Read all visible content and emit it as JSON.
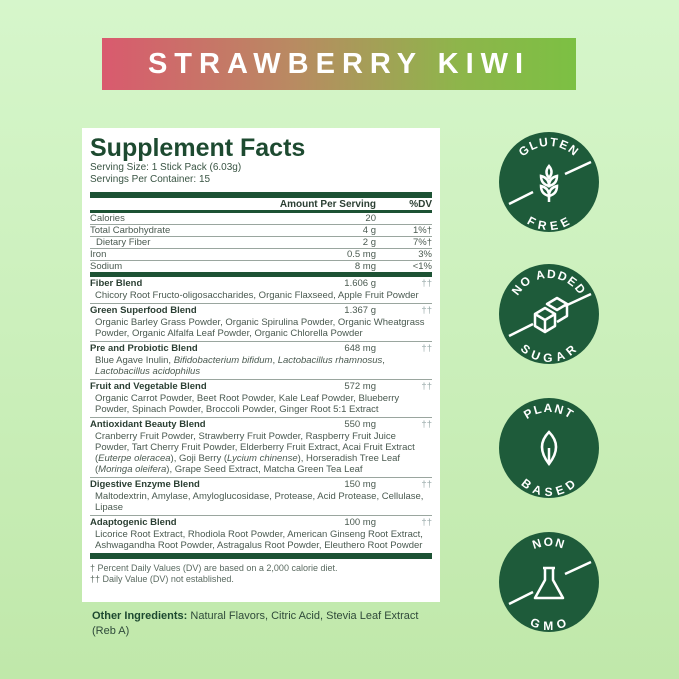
{
  "banner": {
    "title": "STRAWBERRY KIWI",
    "gradient": [
      "#d95a6e",
      "#7cc043"
    ]
  },
  "facts": {
    "title": "Supplement Facts",
    "serving_size": "Serving Size: 1 Stick Pack (6.03g)",
    "servings_per_container": "Servings Per Container: 15",
    "header": {
      "amount": "Amount Per Serving",
      "dv": "%DV"
    },
    "nutrients": [
      {
        "name": "Calories",
        "amount": "20",
        "dv": ""
      },
      {
        "name": "Total Carbohydrate",
        "amount": "4 g",
        "dv": "1%†"
      },
      {
        "name": "Dietary Fiber",
        "amount": "2 g",
        "dv": "7%†"
      },
      {
        "name": "Iron",
        "amount": "0.5 mg",
        "dv": "3%"
      },
      {
        "name": "Sodium",
        "amount": "8 mg",
        "dv": "<1%"
      }
    ],
    "blends": [
      {
        "name": "Fiber Blend",
        "amount": "1.606 g",
        "dv": "††",
        "ingredients": "Chicory Root Fructo-oligosaccharides, Organic Flaxseed, Apple Fruit Powder"
      },
      {
        "name": "Green Superfood Blend",
        "amount": "1.367 g",
        "dv": "††",
        "ingredients": "Organic Barley Grass Powder, Organic Spirulina Powder, Organic Wheatgrass Powder, Organic Alfalfa Leaf Powder, Organic Chlorella Powder"
      },
      {
        "name": "Pre and Probiotic Blend",
        "amount": "648 mg",
        "dv": "††",
        "ingredients": "Blue Agave Inulin, Bifidobacterium bifidum, Lactobacillus rhamnosus, Lactobacillus acidophilus"
      },
      {
        "name": "Fruit and Vegetable Blend",
        "amount": "572 mg",
        "dv": "††",
        "ingredients": "Organic Carrot Powder, Beet Root Powder, Kale Leaf Powder, Blueberry Powder, Spinach Powder, Broccoli Powder, Ginger Root 5:1 Extract"
      },
      {
        "name": "Antioxidant Beauty Blend",
        "amount": "550 mg",
        "dv": "††",
        "ingredients": "Cranberry Fruit Powder, Strawberry Fruit Powder, Raspberry Fruit Juice Powder, Tart Cherry Fruit Powder, Elderberry Fruit Extract, Acai Fruit Extract (Euterpe oleracea), Goji Berry (Lycium chinense), Horseradish Tree Leaf (Moringa oleifera), Grape Seed Extract, Matcha Green Tea Leaf"
      },
      {
        "name": "Digestive Enzyme Blend",
        "amount": "150 mg",
        "dv": "††",
        "ingredients": "Maltodextrin, Amylase, Amyloglucosidase, Protease, Acid Protease, Cellulase, Lipase"
      },
      {
        "name": "Adaptogenic Blend",
        "amount": "100 mg",
        "dv": "††",
        "ingredients": "Licorice Root Extract, Rhodiola Root Powder, American Ginseng Root Extract, Ashwagandha Root Powder, Astragalus Root Powder, Eleuthero Root Powder"
      }
    ],
    "footnotes": [
      "† Percent Daily Values (DV) are based on a 2,000 calorie diet.",
      "†† Daily Value (DV) not established."
    ]
  },
  "other_ingredients": {
    "label": "Other Ingredients:",
    "text": " Natural Flavors, Citric Acid,  Stevia Leaf Extract (Reb A)"
  },
  "badges": [
    {
      "top": "GLUTEN",
      "bottom": "FREE",
      "icon": "wheat-icon"
    },
    {
      "top": "NO ADDED",
      "bottom": "SUGAR",
      "icon": "sugar-cubes-icon"
    },
    {
      "top": "PLANT",
      "bottom": "BASED",
      "icon": "leaf-icon"
    },
    {
      "top": "NON",
      "bottom": "GMO",
      "icon": "flask-icon"
    }
  ],
  "colors": {
    "badge": "#1e5b3a",
    "label_green": "#1d5234"
  }
}
